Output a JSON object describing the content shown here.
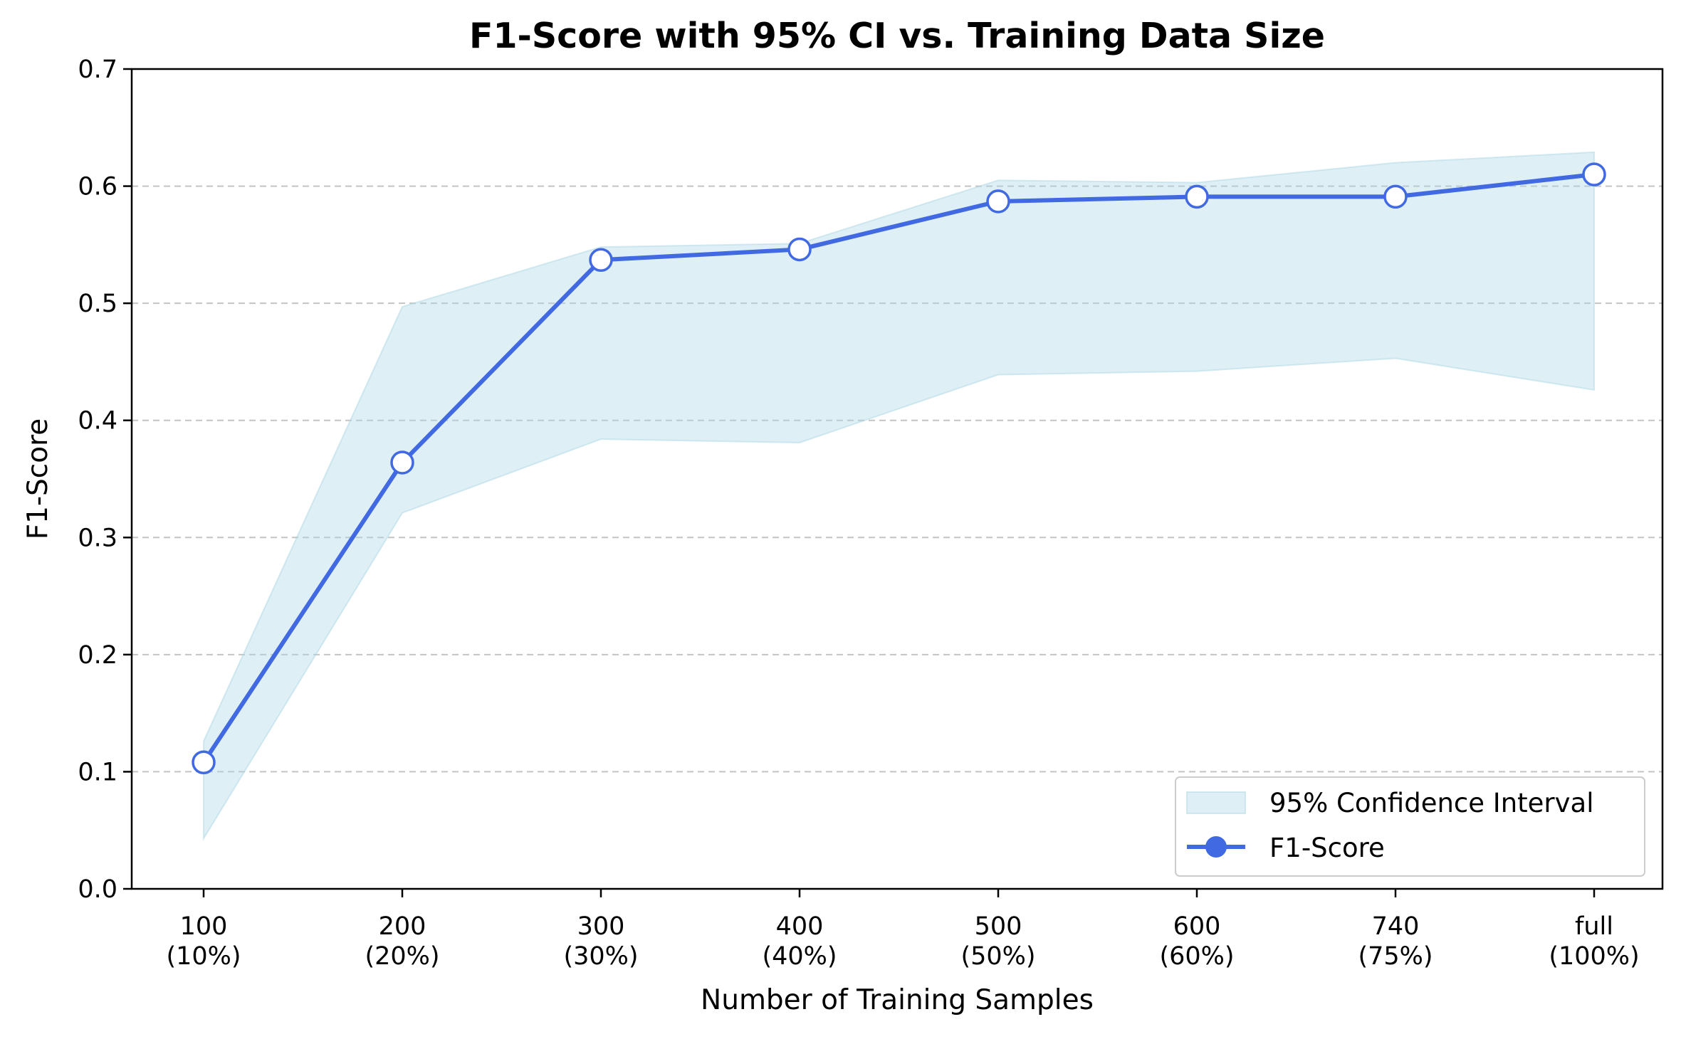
{
  "chart_data": {
    "type": "line",
    "title": "F1-Score with 95% CI vs. Training Data Size",
    "xlabel": "Number of Training Samples",
    "ylabel": "F1-Score",
    "categories": [
      [
        "100",
        "(10%)"
      ],
      [
        "200",
        "(20%)"
      ],
      [
        "300",
        "(30%)"
      ],
      [
        "400",
        "(40%)"
      ],
      [
        "500",
        "(50%)"
      ],
      [
        "600",
        "(60%)"
      ],
      [
        "740",
        "(75%)"
      ],
      [
        "full",
        "(100%)"
      ]
    ],
    "ylim": [
      0.0,
      0.7
    ],
    "yticks": [
      "0.0",
      "0.1",
      "0.2",
      "0.3",
      "0.4",
      "0.5",
      "0.6",
      "0.7"
    ],
    "grid": "horizontal dashed",
    "legend_position": "lower-right",
    "series": [
      {
        "name": "F1-Score",
        "values": [
          0.108,
          0.364,
          0.537,
          0.546,
          0.587,
          0.591,
          0.591,
          0.61
        ],
        "color": "#4169e1"
      }
    ],
    "confidence_interval": {
      "name": "95% Confidence Interval",
      "lower": [
        0.043,
        0.321,
        0.384,
        0.381,
        0.439,
        0.442,
        0.453,
        0.426
      ],
      "upper": [
        0.126,
        0.497,
        0.548,
        0.551,
        0.605,
        0.603,
        0.62,
        0.629
      ],
      "color": "#add8e6"
    }
  }
}
